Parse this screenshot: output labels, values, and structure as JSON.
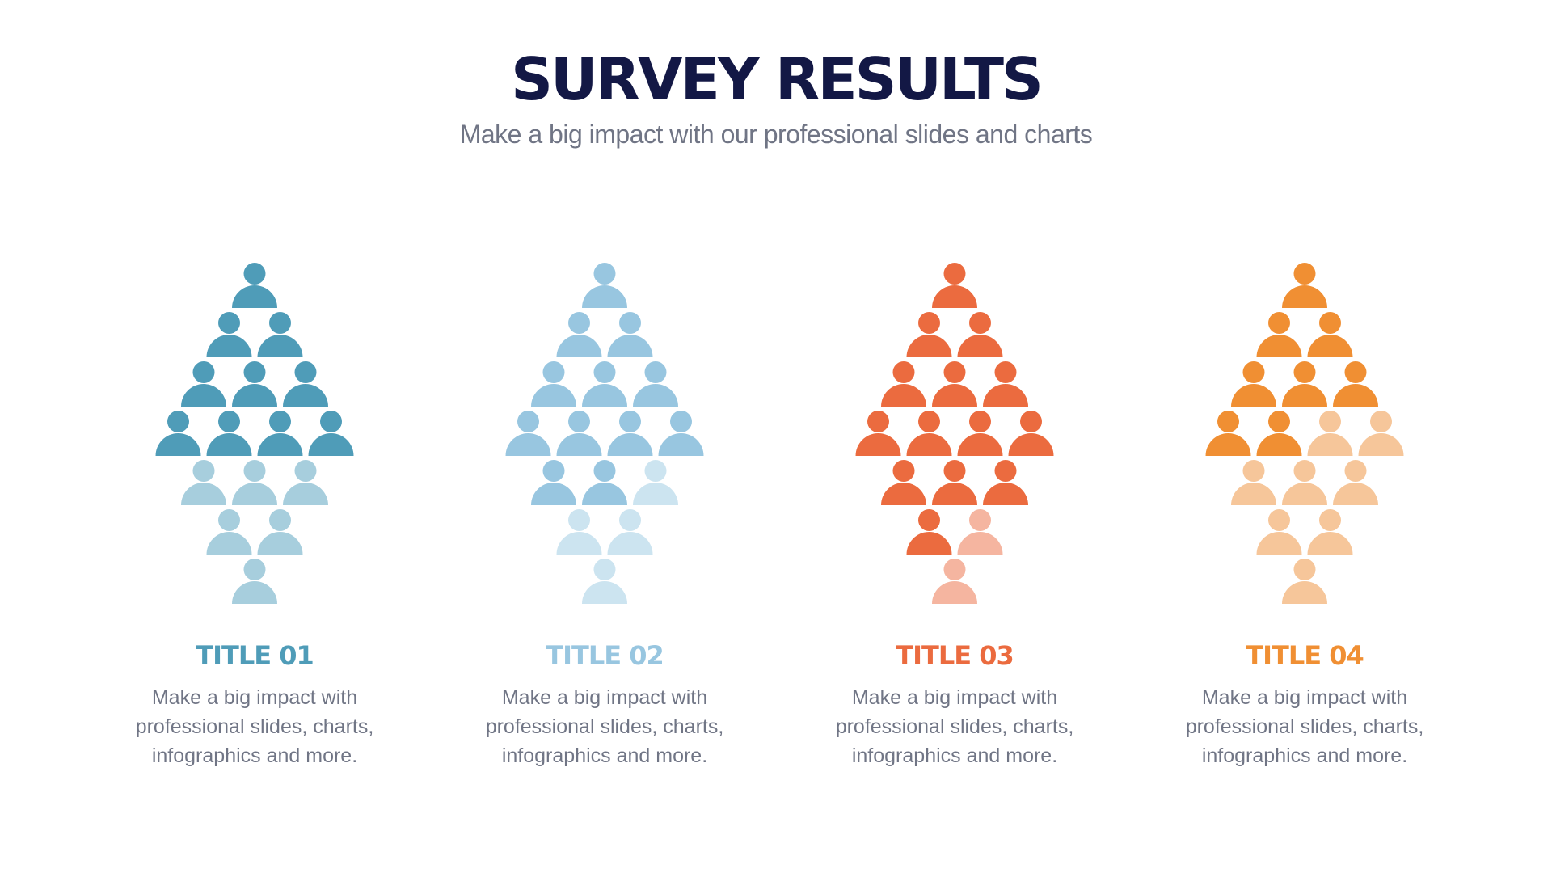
{
  "title": "SURVEY RESULTS",
  "subtitle": "Make a big impact with our professional slides and charts",
  "chart_data": {
    "type": "pictogram",
    "rows_per_figure": [
      1,
      2,
      3,
      4,
      3,
      2,
      1
    ],
    "total_icons": 16,
    "series": [
      {
        "name": "TITLE 01",
        "highlighted": 10,
        "color": "#4F9CB8",
        "light_color": "#A7CEDD",
        "title_color": "#4F9CB8",
        "description": "Make a big impact with professional slides, charts, infographics and more."
      },
      {
        "name": "TITLE 02",
        "highlighted": 12,
        "color": "#98C6E0",
        "light_color": "#CCE4F0",
        "title_color": "#98C6E0",
        "description": "Make a big impact with professional slides, charts, infographics and more."
      },
      {
        "name": "TITLE 03",
        "highlighted": 14,
        "color": "#EB6B3F",
        "light_color": "#F5B5A0",
        "title_color": "#EB6B3F",
        "description": "Make a big impact with professional slides, charts, infographics and more."
      },
      {
        "name": "TITLE 04",
        "highlighted": 8,
        "color": "#F08F33",
        "light_color": "#F6C69A",
        "title_color": "#F08F33",
        "description": "Make a big impact with professional slides, charts, infographics and more."
      }
    ]
  }
}
